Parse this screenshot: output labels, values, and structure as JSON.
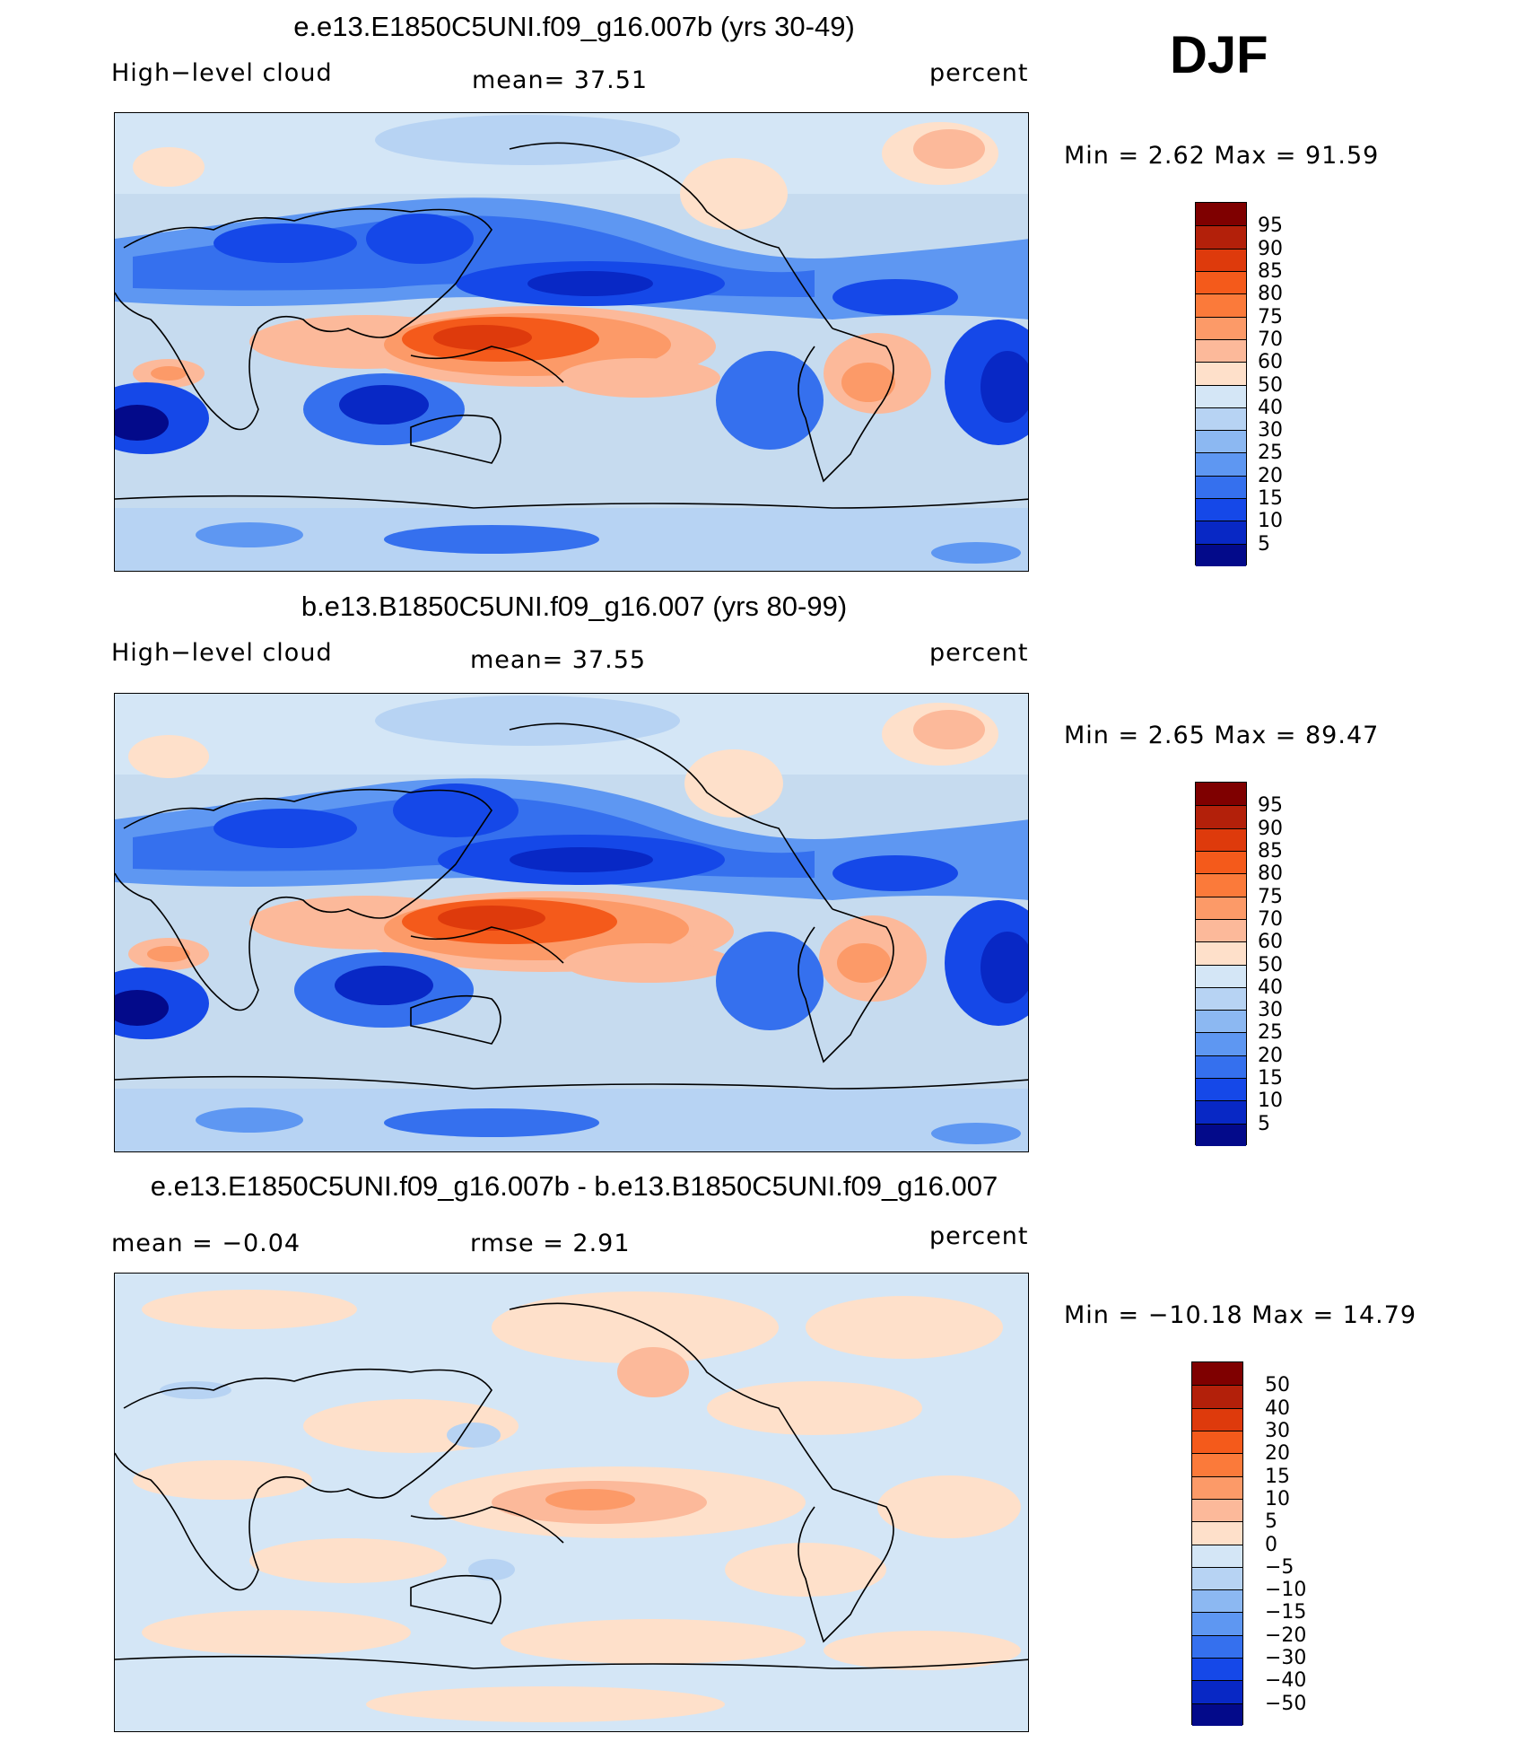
{
  "season": "DJF",
  "panels": [
    {
      "title": "e.e13.E1850C5UNI.f09_g16.007b (yrs 30-49)",
      "left_label": "High−level  cloud",
      "center_label": "mean=   37.51",
      "right_label": "percent",
      "stats": "Min  =      2.62  Max  =    91.59",
      "field_type": "absolute",
      "colorbar": {
        "levels": [
          "95",
          "90",
          "85",
          "80",
          "75",
          "70",
          "60",
          "50",
          "40",
          "30",
          "25",
          "20",
          "15",
          "10",
          "5"
        ],
        "colors": [
          "#7f0000",
          "#b3200a",
          "#de3a0c",
          "#f45a1b",
          "#fb7a3a",
          "#fc9a68",
          "#fcb99a",
          "#fee0ca",
          "#d4e6f6",
          "#b7d3f3",
          "#8cb8f2",
          "#5e97f2",
          "#3570ee",
          "#1548e8",
          "#0828c5",
          "#030a8a"
        ]
      }
    },
    {
      "title": "b.e13.B1850C5UNI.f09_g16.007 (yrs 80-99)",
      "left_label": "High−level  cloud",
      "center_label": "mean=   37.55",
      "right_label": "percent",
      "stats": "Min  =      2.65  Max  =    89.47",
      "field_type": "absolute",
      "colorbar": {
        "levels": [
          "95",
          "90",
          "85",
          "80",
          "75",
          "70",
          "60",
          "50",
          "40",
          "30",
          "25",
          "20",
          "15",
          "10",
          "5"
        ],
        "colors": [
          "#7f0000",
          "#b3200a",
          "#de3a0c",
          "#f45a1b",
          "#fb7a3a",
          "#fc9a68",
          "#fcb99a",
          "#fee0ca",
          "#d4e6f6",
          "#b7d3f3",
          "#8cb8f2",
          "#5e97f2",
          "#3570ee",
          "#1548e8",
          "#0828c5",
          "#030a8a"
        ]
      }
    },
    {
      "title": "e.e13.E1850C5UNI.f09_g16.007b - b.e13.B1850C5UNI.f09_g16.007",
      "left_label": "mean  =    −0.04",
      "center_label": "rmse  =      2.91",
      "right_label": "percent",
      "stats": "Min  =  −10.18  Max  =     14.79",
      "field_type": "difference",
      "colorbar": {
        "levels": [
          "50",
          "40",
          "30",
          "20",
          "15",
          "10",
          "5",
          "0",
          "−5",
          "−10",
          "−15",
          "−20",
          "−30",
          "−40",
          "−50"
        ],
        "colors": [
          "#7f0000",
          "#b3200a",
          "#de3a0c",
          "#f45a1b",
          "#fb7a3a",
          "#fc9a68",
          "#fcb99a",
          "#fee0ca",
          "#d4e6f6",
          "#b7d3f3",
          "#8cb8f2",
          "#5e97f2",
          "#3570ee",
          "#1548e8",
          "#0828c5",
          "#030a8a"
        ]
      }
    }
  ]
}
